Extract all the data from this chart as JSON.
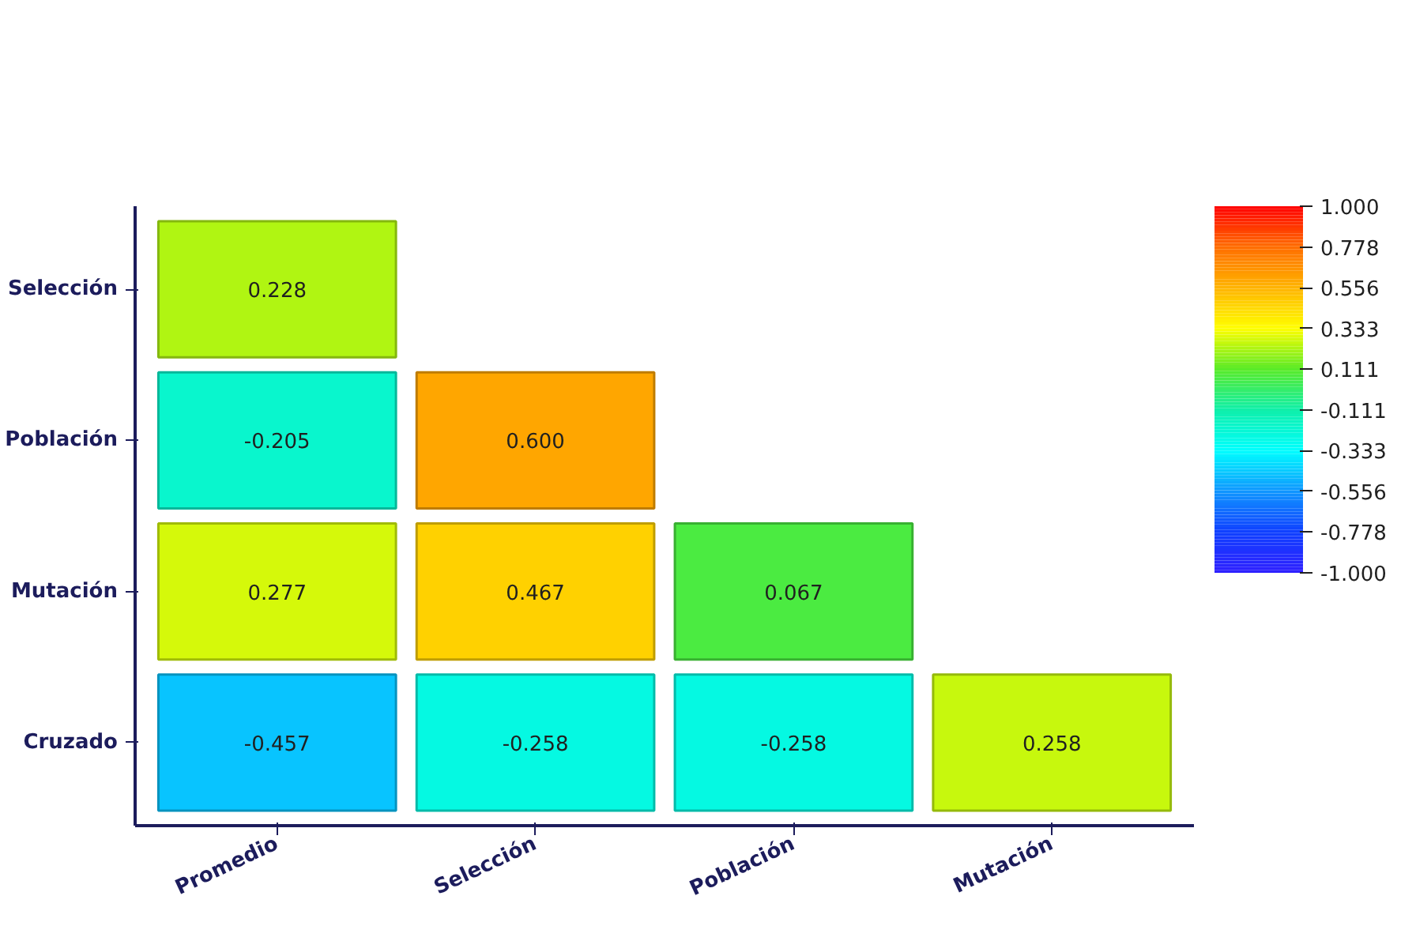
{
  "chart_data": {
    "type": "heatmap",
    "categories": [
      "Promedio",
      "Selección",
      "Población",
      "Mutación"
    ],
    "y_categories": [
      "Selección",
      "Población",
      "Mutación",
      "Cruzado"
    ],
    "cells": [
      [
        0.228,
        null,
        null,
        null
      ],
      [
        -0.205,
        0.6,
        null,
        null
      ],
      [
        0.277,
        0.467,
        0.067,
        null
      ],
      [
        -0.457,
        -0.258,
        -0.258,
        0.258
      ]
    ],
    "cell_labels": [
      [
        "0.228",
        null,
        null,
        null
      ],
      [
        "-0.205",
        "0.600",
        null,
        null
      ],
      [
        "0.277",
        "0.467",
        "0.067",
        null
      ],
      [
        "-0.457",
        "-0.258",
        "-0.258",
        "0.258"
      ]
    ],
    "clim": [
      -1,
      1
    ],
    "cticks": [
      {
        "value": 1,
        "label": "1.000"
      },
      {
        "value": 0.778,
        "label": "0.778"
      },
      {
        "value": 0.556,
        "label": "0.556"
      },
      {
        "value": 0.333,
        "label": "0.333"
      },
      {
        "value": 0.111,
        "label": "0.111"
      },
      {
        "value": -0.111,
        "label": "-0.111"
      },
      {
        "value": -0.333,
        "label": "-0.333"
      },
      {
        "value": -0.556,
        "label": "-0.556"
      },
      {
        "value": -0.778,
        "label": "-0.778"
      },
      {
        "value": -1,
        "label": "-1.000"
      }
    ]
  }
}
